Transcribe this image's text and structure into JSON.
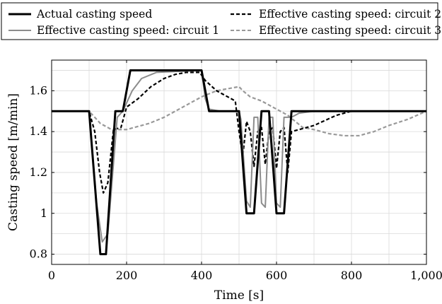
{
  "chart_data": {
    "type": "line",
    "xlabel": "Time [s]",
    "ylabel": "Casting speed [m/min]",
    "xlim": [
      0,
      1000
    ],
    "ylim": [
      0.75,
      1.75
    ],
    "xticks": [
      0,
      200,
      400,
      600,
      800,
      1000
    ],
    "xtick_labels": [
      "0",
      "200",
      "400",
      "600",
      "800",
      "1,000"
    ],
    "yticks": [
      0.8,
      1.0,
      1.2,
      1.4,
      1.6
    ],
    "ytick_labels": [
      "0.8",
      "1",
      "1.2",
      "1.4",
      "1.6"
    ],
    "grid": true,
    "legend_position": "top, above plot, two columns",
    "series": [
      {
        "name": "Actual casting speed",
        "color": "#000000",
        "style": "solid-thick",
        "x": [
          0,
          100,
          130,
          145,
          170,
          190,
          210,
          400,
          420,
          500,
          520,
          540,
          560,
          580,
          600,
          620,
          640,
          660,
          1000
        ],
        "y": [
          1.5,
          1.5,
          0.8,
          0.8,
          1.5,
          1.5,
          1.7,
          1.7,
          1.5,
          1.5,
          1.0,
          1.0,
          1.5,
          1.5,
          1.0,
          1.0,
          1.5,
          1.5,
          1.5
        ]
      },
      {
        "name": "Effective casting speed: circuit 1",
        "color": "#8c8c8c",
        "style": "solid",
        "x": [
          0,
          100,
          120,
          135,
          150,
          175,
          190,
          215,
          240,
          280,
          400,
          410,
          420,
          450,
          500,
          505,
          520,
          530,
          540,
          550,
          560,
          570,
          580,
          590,
          600,
          610,
          620,
          630,
          640,
          660,
          700,
          760,
          1000
        ],
        "y": [
          1.5,
          1.5,
          1.05,
          0.86,
          0.9,
          1.47,
          1.5,
          1.6,
          1.66,
          1.69,
          1.7,
          1.56,
          1.51,
          1.5,
          1.5,
          1.46,
          1.06,
          1.03,
          1.47,
          1.47,
          1.05,
          1.03,
          1.47,
          1.47,
          1.05,
          1.03,
          1.47,
          1.47,
          1.47,
          1.49,
          1.5,
          1.5,
          1.5
        ]
      },
      {
        "name": "Effective casting speed: circuit 2",
        "color": "#000000",
        "style": "dashed",
        "x": [
          0,
          100,
          115,
          128,
          138,
          150,
          165,
          185,
          200,
          230,
          265,
          300,
          330,
          360,
          395,
          410,
          440,
          490,
          500,
          510,
          520,
          530,
          540,
          550,
          560,
          570,
          580,
          590,
          600,
          610,
          620,
          630,
          640,
          660,
          700,
          760,
          800,
          860,
          1000
        ],
        "y": [
          1.5,
          1.5,
          1.4,
          1.2,
          1.1,
          1.15,
          1.41,
          1.42,
          1.52,
          1.56,
          1.62,
          1.66,
          1.68,
          1.69,
          1.69,
          1.65,
          1.6,
          1.55,
          1.4,
          1.28,
          1.45,
          1.4,
          1.23,
          1.4,
          1.42,
          1.24,
          1.4,
          1.42,
          1.22,
          1.4,
          1.42,
          1.2,
          1.4,
          1.41,
          1.43,
          1.48,
          1.5,
          1.5,
          1.5
        ]
      },
      {
        "name": "Effective casting speed: circuit 3",
        "color": "#999999",
        "style": "dashed",
        "x": [
          0,
          100,
          130,
          160,
          200,
          260,
          300,
          350,
          400,
          440,
          470,
          500,
          510,
          530,
          560,
          580,
          600,
          630,
          650,
          670,
          700,
          740,
          780,
          820,
          860,
          900,
          950,
          1000
        ],
        "y": [
          1.5,
          1.5,
          1.44,
          1.41,
          1.41,
          1.44,
          1.47,
          1.52,
          1.57,
          1.6,
          1.61,
          1.62,
          1.6,
          1.57,
          1.55,
          1.53,
          1.51,
          1.48,
          1.45,
          1.42,
          1.41,
          1.39,
          1.38,
          1.38,
          1.4,
          1.43,
          1.46,
          1.5
        ]
      }
    ]
  }
}
